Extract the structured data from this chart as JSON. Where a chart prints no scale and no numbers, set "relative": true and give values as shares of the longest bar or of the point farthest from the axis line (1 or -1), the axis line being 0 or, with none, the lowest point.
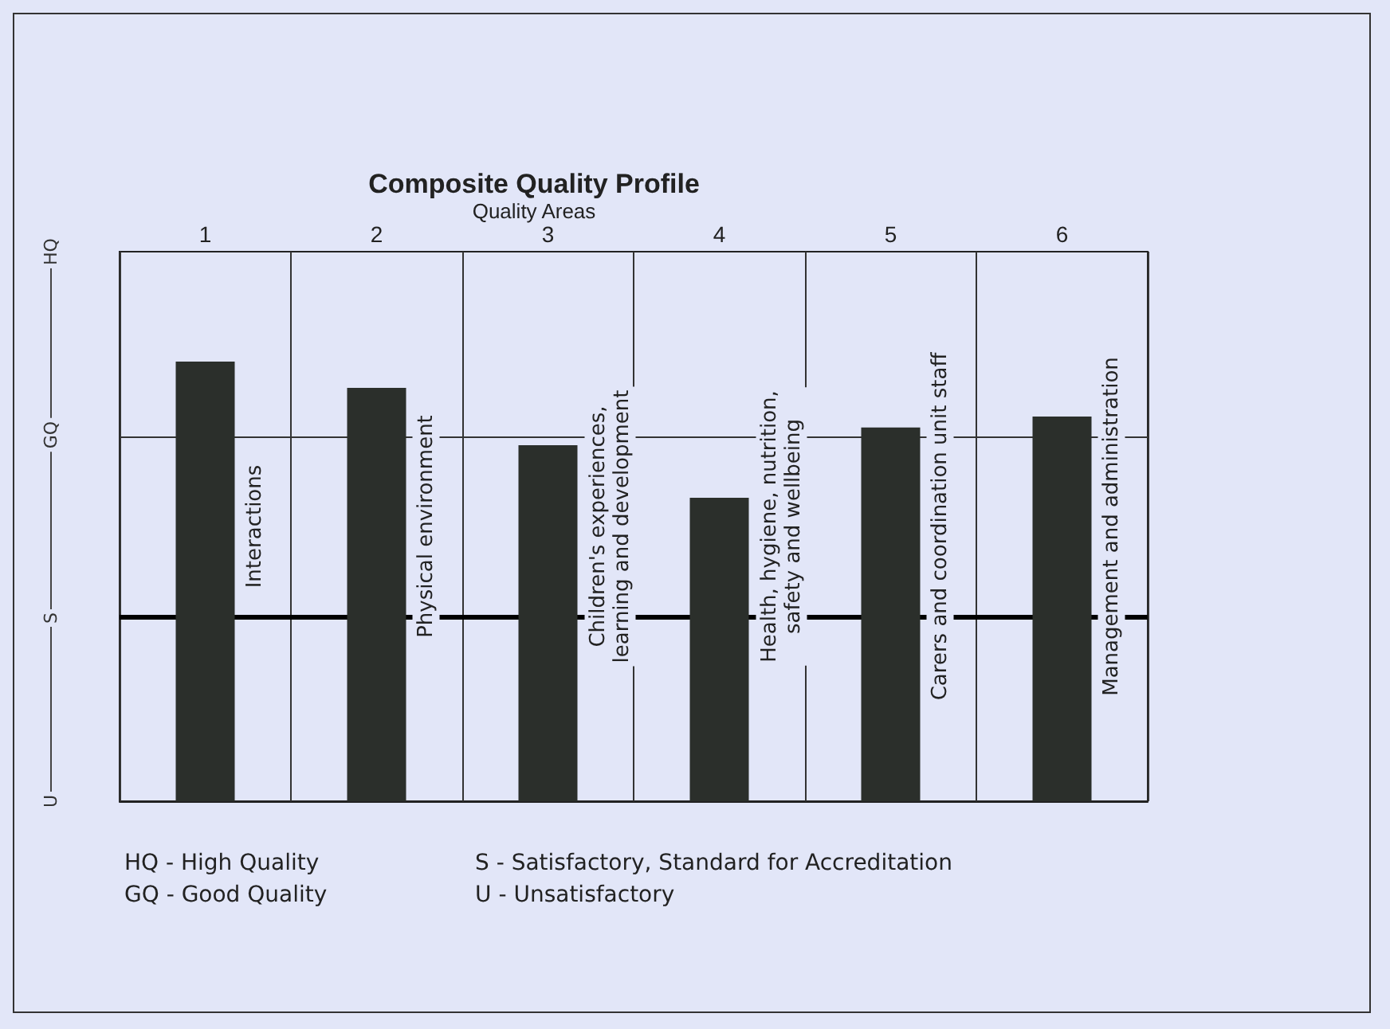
{
  "chart_data": {
    "type": "bar",
    "title": "Composite Quality Profile",
    "xlabel": "Quality Areas",
    "categories": [
      "1",
      "2",
      "3",
      "4",
      "5",
      "6"
    ],
    "values": [
      1,
      0.94,
      0.81,
      0.69,
      0.85,
      0.875
    ],
    "color": "#2b2f2b",
    "relative": true,
    "grid": "x",
    "ref_lines": [
      {
        "axis": "y",
        "value": 0.833,
        "color": "#333333"
      },
      {
        "axis": "y",
        "value": 0.417,
        "color": "#000000"
      }
    ],
    "annotations": [
      "Interactions",
      "Physical environment",
      "Children's experiences,\nlearning and development",
      "Health, hygiene, nutrition,\nsafety and wellbeing",
      "Carers and coordination unit staff",
      "Management and administration",
      "HQ",
      "GQ",
      "S",
      "U",
      "HQ - High Quality",
      "GQ - Good Quality",
      "S - Satisfactory, Standard for Accreditation",
      "U - Unsatisfactory"
    ]
  }
}
